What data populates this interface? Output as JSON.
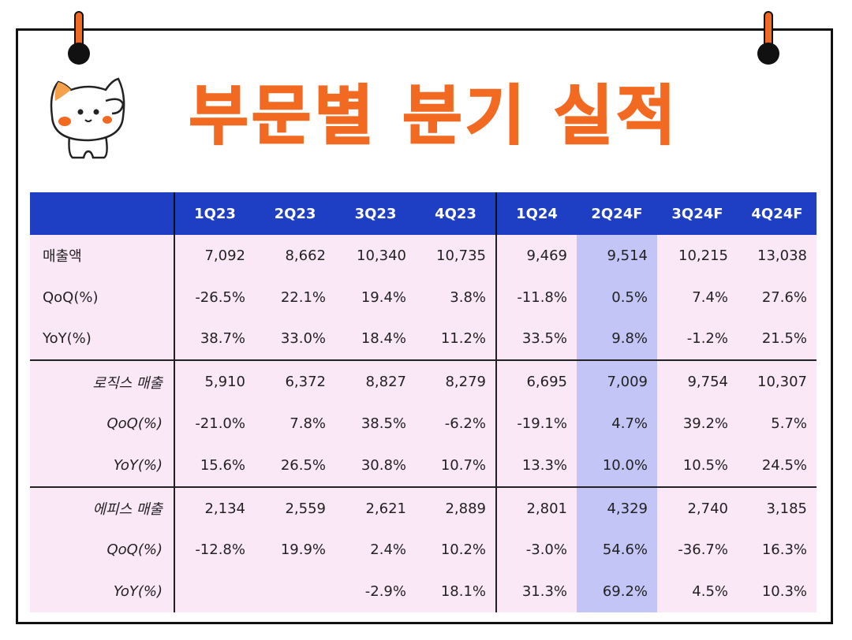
{
  "title": "부문별 분기 실적",
  "table": {
    "headers": [
      "",
      "1Q23",
      "2Q23",
      "3Q23",
      "4Q23",
      "1Q24",
      "2Q24F",
      "3Q24F",
      "4Q24F"
    ],
    "groups": [
      {
        "rows": [
          {
            "label": "매출액",
            "values": [
              "7,092",
              "8,662",
              "10,340",
              "10,735",
              "9,469",
              "9,514",
              "10,215",
              "13,038"
            ]
          },
          {
            "label": "QoQ(%)",
            "values": [
              "-26.5%",
              "22.1%",
              "19.4%",
              "3.8%",
              "-11.8%",
              "0.5%",
              "7.4%",
              "27.6%"
            ]
          },
          {
            "label": "YoY(%)",
            "values": [
              "38.7%",
              "33.0%",
              "18.4%",
              "11.2%",
              "33.5%",
              "9.8%",
              "-1.2%",
              "21.5%"
            ]
          }
        ]
      },
      {
        "rows": [
          {
            "label": "로직스 매출",
            "values": [
              "5,910",
              "6,372",
              "8,827",
              "8,279",
              "6,695",
              "7,009",
              "9,754",
              "10,307"
            ]
          },
          {
            "label": "QoQ(%)",
            "values": [
              "-21.0%",
              "7.8%",
              "38.5%",
              "-6.2%",
              "-19.1%",
              "4.7%",
              "39.2%",
              "5.7%"
            ]
          },
          {
            "label": "YoY(%)",
            "values": [
              "15.6%",
              "26.5%",
              "30.8%",
              "10.7%",
              "13.3%",
              "10.0%",
              "10.5%",
              "24.5%"
            ]
          }
        ]
      },
      {
        "rows": [
          {
            "label": "에피스 매출",
            "values": [
              "2,134",
              "2,559",
              "2,621",
              "2,889",
              "2,801",
              "4,329",
              "2,740",
              "3,185"
            ]
          },
          {
            "label": "QoQ(%)",
            "values": [
              "-12.8%",
              "19.9%",
              "2.4%",
              "10.2%",
              "-3.0%",
              "54.6%",
              "-36.7%",
              "16.3%"
            ]
          },
          {
            "label": "YoY(%)",
            "values": [
              "",
              "",
              "-2.9%",
              "18.1%",
              "31.3%",
              "69.2%",
              "4.5%",
              "10.3%"
            ]
          }
        ]
      }
    ]
  },
  "colors": {
    "title": "#f26a21",
    "header_bg": "#1e3ec3",
    "cell_bg": "#fbe8f7",
    "highlight_col_bg": "#c2c5f5"
  },
  "icons": {
    "pin": "pushpin-icon",
    "mascot": "cat-mascot-icon"
  }
}
